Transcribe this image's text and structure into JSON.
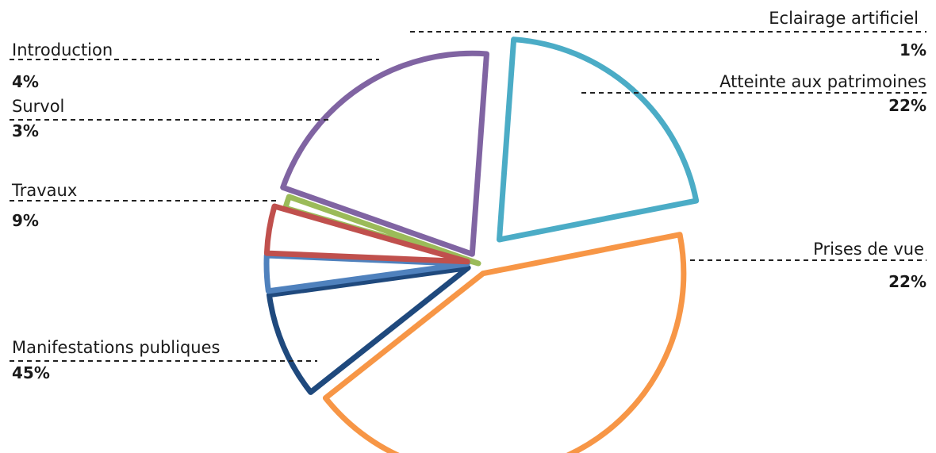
{
  "chart_data": {
    "type": "pie",
    "title": "",
    "exploded": true,
    "slices": [
      {
        "label": "Eclairage artificiel",
        "value": 1,
        "value_label": "1%",
        "color": "#9BBB59"
      },
      {
        "label": "Atteinte aux patrimoines",
        "value": 22,
        "value_label": "22%",
        "color": "#8064A2"
      },
      {
        "label": "Prises de vue",
        "value": 22,
        "value_label": "22%",
        "color": "#4BACC6"
      },
      {
        "label": "Manifestations publiques",
        "value": 45,
        "value_label": "45%",
        "color": "#F79646"
      },
      {
        "label": "Travaux",
        "value": 9,
        "value_label": "9%",
        "color": "#1F497D"
      },
      {
        "label": "Survol",
        "value": 3,
        "value_label": "3%",
        "color": "#4F81BD"
      },
      {
        "label": "Introduction",
        "value": 4,
        "value_label": "4%",
        "color": "#C0504D"
      }
    ]
  }
}
